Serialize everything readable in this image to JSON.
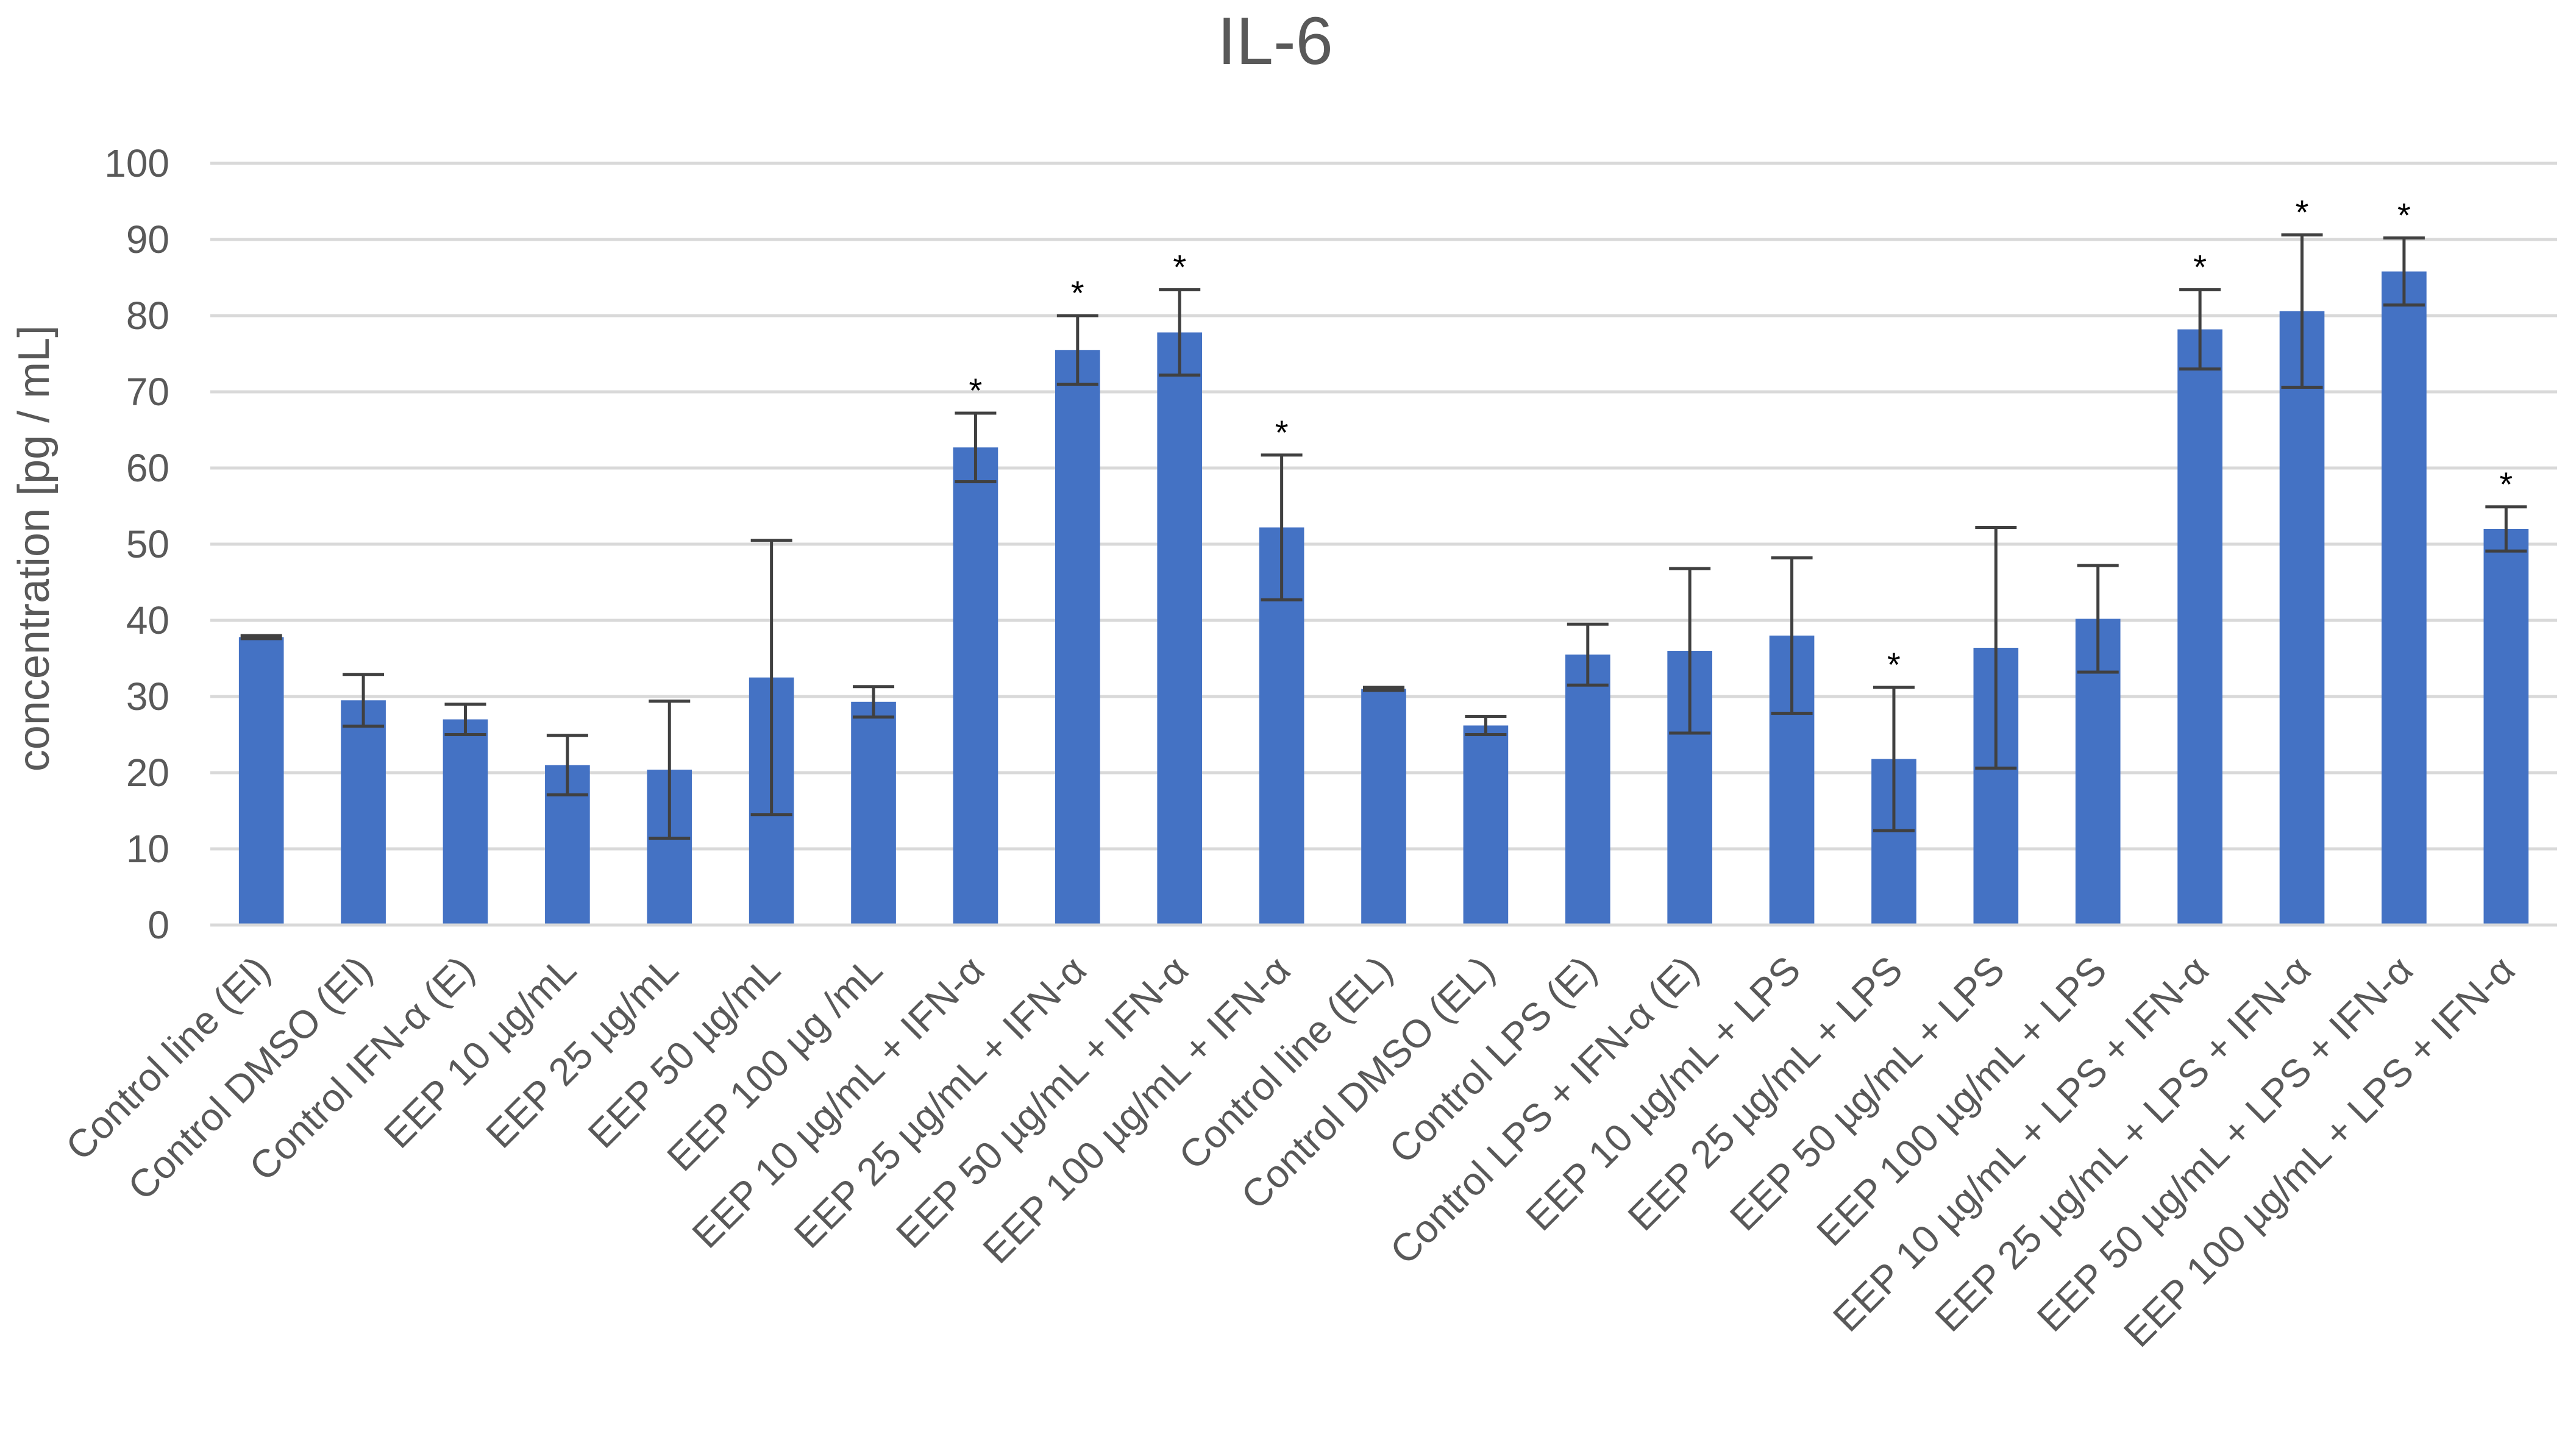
{
  "chart_data": {
    "type": "bar",
    "title": "IL-6",
    "xlabel": "",
    "ylabel": "concentration [pg / mL]",
    "ylim": [
      0,
      100
    ],
    "yticks": [
      0,
      10,
      20,
      30,
      40,
      50,
      60,
      70,
      80,
      90,
      100
    ],
    "grid": true,
    "bar_color": "#4472c4",
    "significance_marker": "*",
    "categories": [
      "Control line (El)",
      "Control DMSO (El)",
      "Control IFN-α (E)",
      "EEP 10 µg/mL",
      "EEP 25 µg/mL",
      "EEP 50 µg/mL",
      "EEP 100 µg /mL",
      "EEP 10 µg/mL + IFN-α",
      "EEP 25 µg/mL + IFN-α",
      "EEP 50 µg/mL + IFN-α",
      "EEP 100 µg/mL + IFN-α",
      "Control line (EL)",
      "Control DMSO (EL)",
      "Control LPS (E)",
      "Control LPS + IFN-α (E)",
      "EEP 10 µg/mL + LPS",
      "EEP 25 µg/mL + LPS",
      "EEP 50 µg/mL + LPS",
      "EEP 100 µg/mL + LPS",
      "EEP 10 µg/mL + LPS + IFN-α",
      "EEP 25 µg/mL + LPS + IFN-α",
      "EEP 50 µg/mL + LPS + IFN-α",
      "EEP 100 µg/mL + LPS + IFN-α"
    ],
    "values": [
      37.8,
      29.5,
      27.0,
      21.0,
      20.4,
      32.5,
      29.3,
      62.7,
      75.5,
      77.8,
      52.2,
      31.0,
      26.2,
      35.5,
      36.0,
      38.0,
      21.8,
      36.4,
      40.2,
      78.2,
      80.6,
      85.8,
      52.0
    ],
    "errors": [
      0.2,
      3.4,
      2.0,
      3.9,
      9.0,
      18.0,
      2.0,
      4.5,
      4.5,
      5.6,
      9.5,
      0.2,
      1.2,
      4.0,
      10.8,
      10.2,
      9.4,
      15.8,
      7.0,
      5.2,
      10.0,
      4.4,
      2.9
    ],
    "significant": [
      false,
      false,
      false,
      false,
      false,
      false,
      false,
      true,
      true,
      true,
      true,
      false,
      false,
      false,
      false,
      false,
      true,
      false,
      false,
      true,
      true,
      true,
      true
    ]
  }
}
